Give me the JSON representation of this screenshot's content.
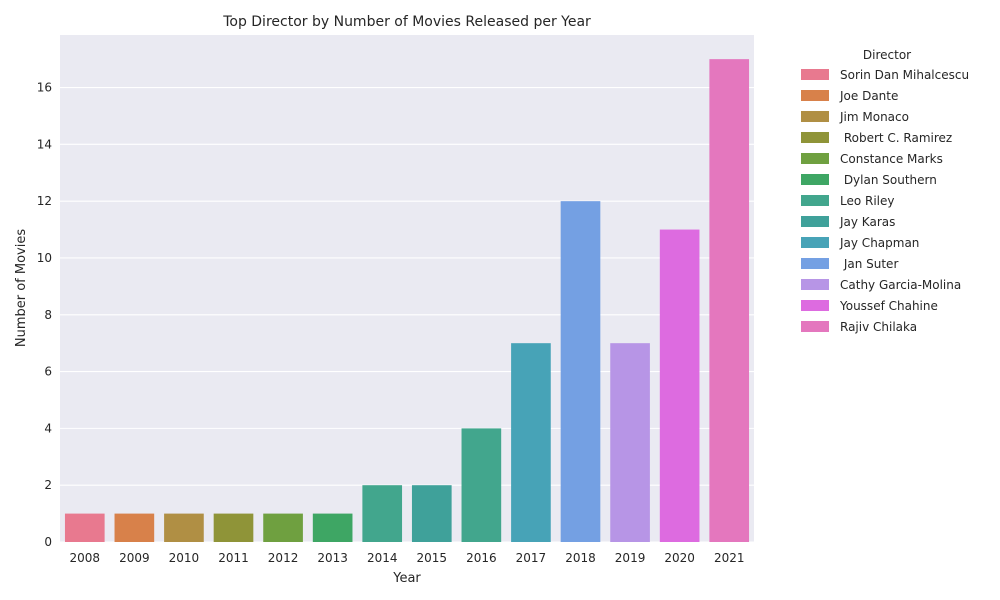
{
  "chart_data": {
    "type": "bar",
    "title": "Top Director by Number of Movies Released per Year",
    "xlabel": "Year",
    "ylabel": "Number of Movies",
    "categories": [
      "2008",
      "2009",
      "2010",
      "2011",
      "2012",
      "2013",
      "2014",
      "2015",
      "2016",
      "2017",
      "2018",
      "2019",
      "2020",
      "2021"
    ],
    "values": [
      1,
      1,
      1,
      1,
      1,
      1,
      2,
      2,
      4,
      7,
      12,
      7,
      11,
      17
    ],
    "directors": [
      "Sorin Dan Mihalcescu",
      "Joe Dante",
      "Jim Monaco",
      " Robert C. Ramirez",
      "Constance Marks",
      " Dylan Southern",
      "Leo Riley",
      "Jay Karas",
      "Jay Chapman",
      " Jan Suter",
      "Cathy Garcia-Molina",
      "Youssef Chahine",
      "Rajiv Chilaka"
    ],
    "bar_director_index": [
      0,
      1,
      2,
      3,
      4,
      5,
      6,
      7,
      6,
      8,
      9,
      10,
      11,
      12
    ],
    "colors": [
      "#e8798f",
      "#d8814a",
      "#b08f44",
      "#8f9438",
      "#6fa040",
      "#3ea664",
      "#42a68d",
      "#3fa19a",
      "#47a3b7",
      "#74a0e3",
      "#b795e6",
      "#dd6be0",
      "#e477be"
    ],
    "ylim": [
      0,
      17.85
    ],
    "yticks": [
      0,
      2,
      4,
      6,
      8,
      10,
      12,
      14,
      16
    ],
    "grid": true,
    "legend_title": "Director",
    "legend_placement": "right, outside plot"
  }
}
